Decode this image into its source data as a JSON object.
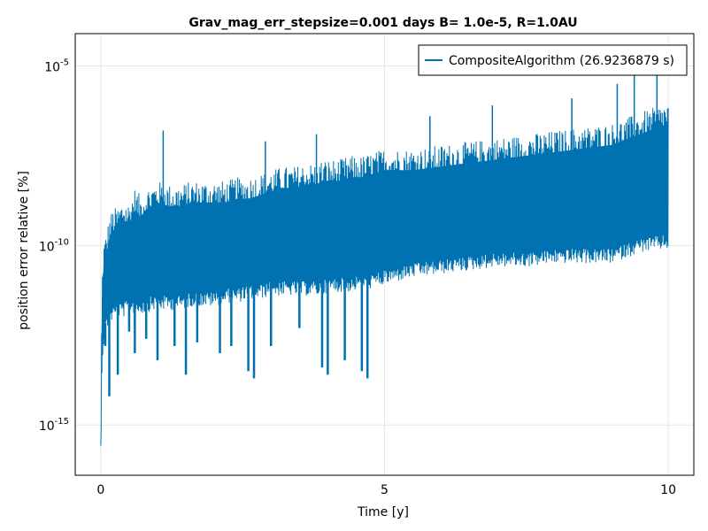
{
  "chart_data": {
    "type": "line",
    "title": "Grav_mag_err_stepsize=0.001 days B= 1.0e-5, R=1.0AU",
    "xlabel": "Time [y]",
    "ylabel": "position error relative [%]",
    "xlim": [
      -0.45,
      10.45
    ],
    "ylim_log10": [
      -16.4,
      -4.1
    ],
    "yscale": "log",
    "grid": true,
    "legend_position": "top-right",
    "x_ticks": [
      0,
      5,
      10
    ],
    "x_tick_labels": [
      "0",
      "5",
      "10"
    ],
    "y_ticks_log10": [
      -15,
      -10,
      -5
    ],
    "y_tick_labels": [
      {
        "base": "10",
        "exp": "-15"
      },
      {
        "base": "10",
        "exp": "-10"
      },
      {
        "base": "10",
        "exp": "-5"
      }
    ],
    "series": [
      {
        "name": "CompositeAlgorithm (26.9236879 s)",
        "color": "#0072b2",
        "x": [
          0.0,
          0.02,
          0.05,
          0.1,
          0.15,
          0.2,
          0.3,
          0.4,
          0.5,
          0.6,
          0.7,
          0.8,
          0.9,
          1.0,
          1.2,
          1.4,
          1.6,
          1.8,
          2.0,
          2.2,
          2.4,
          2.6,
          2.8,
          3.0,
          3.2,
          3.4,
          3.6,
          3.8,
          3.9,
          4.0,
          4.2,
          4.4,
          4.6,
          4.8,
          5.0,
          5.5,
          6.0,
          6.5,
          7.0,
          7.5,
          8.0,
          8.5,
          9.0,
          9.5,
          10.0
        ],
        "upper_log10": [
          -15.9,
          -11.5,
          -10.5,
          -10.2,
          -9.8,
          -9.6,
          -9.5,
          -9.3,
          -9.4,
          -9.0,
          -9.2,
          -9.0,
          -8.9,
          -8.8,
          -8.9,
          -8.9,
          -8.8,
          -8.8,
          -8.8,
          -8.8,
          -8.7,
          -8.7,
          -8.6,
          -8.5,
          -8.4,
          -8.4,
          -8.3,
          -8.3,
          -8.2,
          -8.2,
          -8.2,
          -8.1,
          -8.1,
          -8.0,
          -7.9,
          -7.9,
          -7.8,
          -7.7,
          -7.6,
          -7.5,
          -7.4,
          -7.3,
          -7.2,
          -6.9,
          -6.6
        ],
        "lower_log10": [
          -15.9,
          -13.2,
          -12.4,
          -12.0,
          -11.8,
          -11.7,
          -11.6,
          -11.6,
          -11.5,
          -11.5,
          -11.5,
          -11.5,
          -11.4,
          -11.4,
          -11.4,
          -11.4,
          -11.3,
          -11.3,
          -11.3,
          -11.2,
          -11.2,
          -11.1,
          -11.1,
          -11.0,
          -11.0,
          -11.0,
          -11.0,
          -11.0,
          -11.0,
          -10.9,
          -10.9,
          -10.9,
          -10.8,
          -10.8,
          -10.7,
          -10.5,
          -10.4,
          -10.3,
          -10.2,
          -10.2,
          -10.1,
          -10.1,
          -10.1,
          -9.8,
          -9.7
        ],
        "spikes": [
          {
            "x": 0.08,
            "log10": -12.8
          },
          {
            "x": 0.15,
            "log10": -14.2
          },
          {
            "x": 0.3,
            "log10": -13.6
          },
          {
            "x": 0.5,
            "log10": -12.4
          },
          {
            "x": 0.6,
            "log10": -13.0
          },
          {
            "x": 0.8,
            "log10": -12.6
          },
          {
            "x": 1.0,
            "log10": -13.2
          },
          {
            "x": 1.3,
            "log10": -12.8
          },
          {
            "x": 1.5,
            "log10": -13.6
          },
          {
            "x": 1.7,
            "log10": -12.7
          },
          {
            "x": 2.1,
            "log10": -13.0
          },
          {
            "x": 2.3,
            "log10": -12.8
          },
          {
            "x": 2.6,
            "log10": -13.5
          },
          {
            "x": 2.7,
            "log10": -13.7
          },
          {
            "x": 3.0,
            "log10": -12.8
          },
          {
            "x": 3.5,
            "log10": -12.3
          },
          {
            "x": 3.9,
            "log10": -13.4
          },
          {
            "x": 4.0,
            "log10": -13.6
          },
          {
            "x": 4.3,
            "log10": -13.2
          },
          {
            "x": 4.6,
            "log10": -13.5
          },
          {
            "x": 4.7,
            "log10": -13.7
          }
        ],
        "peaks": [
          {
            "x": 1.1,
            "log10": -6.8
          },
          {
            "x": 2.9,
            "log10": -7.1
          },
          {
            "x": 3.8,
            "log10": -6.9
          },
          {
            "x": 5.8,
            "log10": -6.4
          },
          {
            "x": 6.9,
            "log10": -6.1
          },
          {
            "x": 8.3,
            "log10": -5.9
          },
          {
            "x": 9.1,
            "log10": -5.5
          },
          {
            "x": 9.4,
            "log10": -5.1
          },
          {
            "x": 9.8,
            "log10": -4.8
          }
        ]
      }
    ]
  }
}
